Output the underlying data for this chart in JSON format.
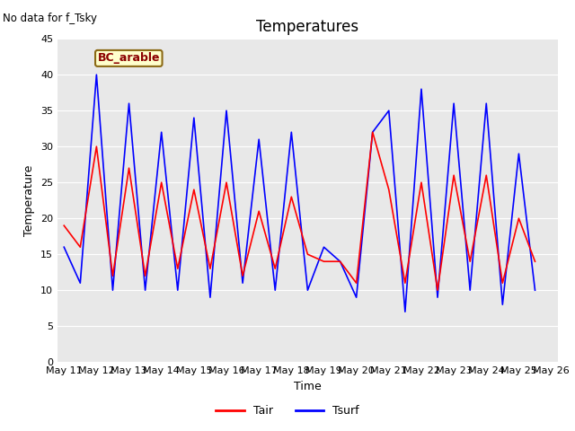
{
  "title": "Temperatures",
  "xlabel": "Time",
  "ylabel": "Temperature",
  "note": "No data for f_Tsky",
  "legend_label": "BC_arable",
  "ylim": [
    0,
    45
  ],
  "yticks": [
    0,
    5,
    10,
    15,
    20,
    25,
    30,
    35,
    40,
    45
  ],
  "figsize": [
    6.4,
    4.8
  ],
  "dpi": 100,
  "fig_facecolor": "#ffffff",
  "axes_facecolor": "#e8e8e8",
  "tair_color": "red",
  "tsurf_color": "blue",
  "tair_lw": 1.2,
  "tsurf_lw": 1.2,
  "x_labels": [
    "May 11",
    "May 12",
    "May 13",
    "May 14",
    "May 15",
    "May 16",
    "May 17",
    "May 18",
    "May 19",
    "May 20",
    "May 21",
    "May 22",
    "May 23",
    "May 24",
    "May 25",
    "May 26"
  ],
  "tair": [
    19,
    16,
    30,
    12,
    27,
    12,
    25,
    13,
    24,
    13,
    25,
    12,
    21,
    13,
    23,
    15,
    14,
    14,
    11,
    32,
    24,
    11,
    25,
    10,
    26,
    14,
    26,
    11,
    20,
    14
  ],
  "tsurf": [
    16,
    11,
    40,
    10,
    36,
    10,
    32,
    10,
    34,
    9,
    35,
    11,
    31,
    10,
    32,
    10,
    16,
    14,
    9,
    32,
    35,
    7,
    38,
    9,
    36,
    10,
    36,
    8,
    29,
    10
  ],
  "x_vals": [
    0,
    0.5,
    1,
    1.5,
    2,
    2.5,
    3,
    3.5,
    4,
    4.5,
    5,
    5.5,
    6,
    6.5,
    7,
    7.5,
    8,
    8.5,
    9,
    9.5,
    10,
    10.5,
    11,
    11.5,
    12,
    12.5,
    13,
    13.5,
    14,
    14.5
  ],
  "xtick_positions": [
    0,
    1,
    2,
    3,
    4,
    5,
    6,
    7,
    8,
    9,
    10,
    11,
    12,
    13,
    14,
    15
  ],
  "xlim": [
    -0.2,
    15.2
  ],
  "title_fontsize": 12,
  "label_fontsize": 9,
  "tick_fontsize": 8,
  "legend_fontsize": 9
}
